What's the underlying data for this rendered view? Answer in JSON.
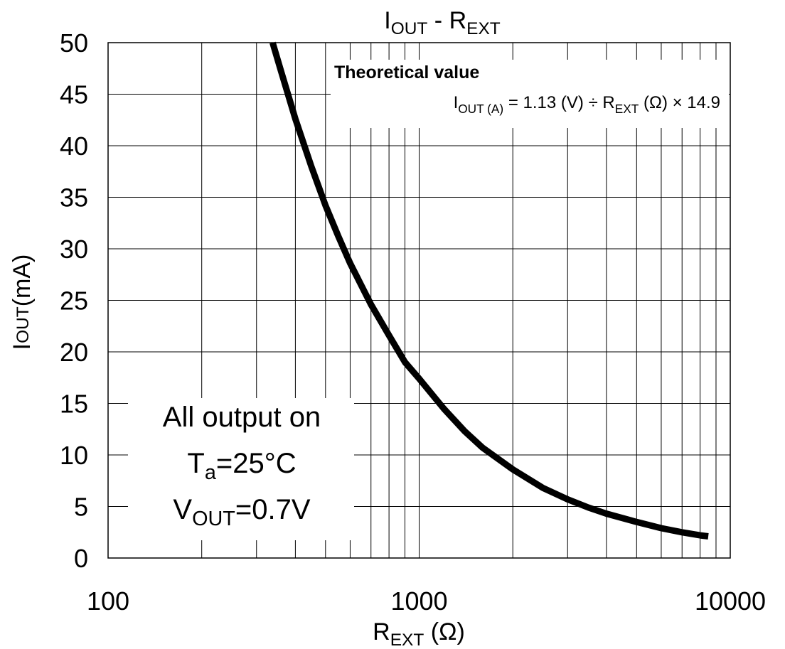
{
  "chart_data": {
    "type": "line",
    "title": {
      "main": "I",
      "sub": "OUT",
      "sep": " -  ",
      "main2": "R",
      "sub2": "EXT"
    },
    "xlabel": {
      "main": "R",
      "sub": "EXT",
      "unit": " (Ω)"
    },
    "ylabel": {
      "main": "I",
      "sub": "OUT",
      "unit": "(mA)"
    },
    "x_scale": "log",
    "xlim": [
      100,
      10000
    ],
    "ylim": [
      0,
      50
    ],
    "x_ticks": [
      "100",
      "1000",
      "10000"
    ],
    "y_ticks": [
      "0",
      "5",
      "10",
      "15",
      "20",
      "25",
      "30",
      "35",
      "40",
      "45",
      "50"
    ],
    "grid": true,
    "annotation": {
      "heading": "Theoretical value",
      "formula": {
        "i": "I",
        "i_sub": "OUT (A)",
        "mid": " = 1.13 (V) ÷ R",
        "r_sub": "EXT",
        "tail": " (Ω) × 14.9"
      }
    },
    "conditions": {
      "line1": "All output on",
      "line2_main": "T",
      "line2_sub": "a",
      "line2_tail": "=25°C",
      "line3_main": "V",
      "line3_sub": "OUT",
      "line3_tail": "=0.7V"
    },
    "series": [
      {
        "color": "#000000",
        "x": [
          338,
          360,
          400,
          450,
          500,
          550,
          600,
          700,
          800,
          900,
          1000,
          1200,
          1400,
          1600,
          2000,
          2500,
          3000,
          3500,
          4000,
          5000,
          6000,
          7000,
          8000,
          8500
        ],
        "y": [
          50,
          47.2,
          42.6,
          38.0,
          34.2,
          31.2,
          28.6,
          24.6,
          21.6,
          19.0,
          17.4,
          14.5,
          12.3,
          10.7,
          8.6,
          6.8,
          5.7,
          4.9,
          4.3,
          3.5,
          2.9,
          2.5,
          2.2,
          2.1
        ]
      }
    ]
  }
}
